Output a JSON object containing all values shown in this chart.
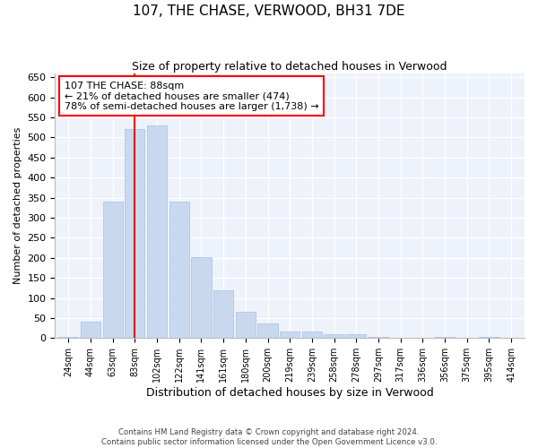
{
  "title": "107, THE CHASE, VERWOOD, BH31 7DE",
  "subtitle": "Size of property relative to detached houses in Verwood",
  "xlabel": "Distribution of detached houses by size in Verwood",
  "ylabel": "Number of detached properties",
  "bar_color": "#c8d8ee",
  "bar_edge_color": "#a8c0e0",
  "categories": [
    "24sqm",
    "44sqm",
    "63sqm",
    "83sqm",
    "102sqm",
    "122sqm",
    "141sqm",
    "161sqm",
    "180sqm",
    "200sqm",
    "219sqm",
    "239sqm",
    "258sqm",
    "278sqm",
    "297sqm",
    "317sqm",
    "336sqm",
    "356sqm",
    "375sqm",
    "395sqm",
    "414sqm"
  ],
  "values": [
    2,
    42,
    340,
    520,
    530,
    340,
    202,
    118,
    65,
    36,
    17,
    17,
    10,
    10,
    2,
    0,
    0,
    3,
    0,
    2,
    0
  ],
  "ylim": [
    0,
    660
  ],
  "yticks": [
    0,
    50,
    100,
    150,
    200,
    250,
    300,
    350,
    400,
    450,
    500,
    550,
    600,
    650
  ],
  "annotation_text": "107 THE CHASE: 88sqm\n← 21% of detached houses are smaller (474)\n78% of semi-detached houses are larger (1,738) →",
  "annotation_box_color": "white",
  "annotation_box_edge_color": "red",
  "vline_color": "red",
  "vline_x": 3.5,
  "background_color": "#edf2fb",
  "grid_color": "white",
  "footer_line1": "Contains HM Land Registry data © Crown copyright and database right 2024.",
  "footer_line2": "Contains public sector information licensed under the Open Government Licence v3.0."
}
